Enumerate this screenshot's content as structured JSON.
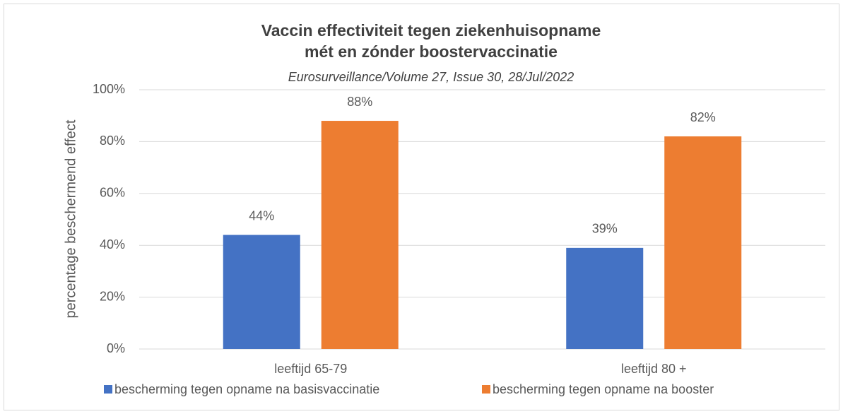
{
  "chart_data": {
    "type": "bar",
    "title": [
      "Vaccin effectiviteit tegen ziekenhuisopname",
      "mét en zónder boostervaccinatie"
    ],
    "subtitle": "Eurosurveillance/Volume 27, Issue 30, 28/Jul/2022",
    "y_label": "percentage beschermend effect",
    "categories": [
      "leeftijd 65-79",
      "leeftijd 80 +"
    ],
    "series": [
      {
        "name": "bescherming tegen opname na basisvaccinatie",
        "color": "#4472c4",
        "values": [
          44,
          39
        ],
        "value_labels": [
          "44%",
          "39%"
        ]
      },
      {
        "name": "bescherming tegen opname na booster",
        "color": "#ed7d31",
        "values": [
          88,
          82
        ],
        "value_labels": [
          "88%",
          "82%"
        ]
      }
    ],
    "ylim": [
      0,
      100
    ],
    "yticks": [
      {
        "value": 0,
        "label": "0%"
      },
      {
        "value": 20,
        "label": "20%"
      },
      {
        "value": 40,
        "label": "40%"
      },
      {
        "value": 60,
        "label": "60%"
      },
      {
        "value": 80,
        "label": "80%"
      },
      {
        "value": 100,
        "label": "100%"
      }
    ],
    "grid": true,
    "legend": "bottom"
  }
}
